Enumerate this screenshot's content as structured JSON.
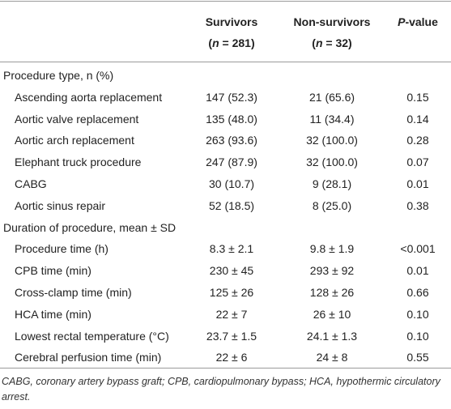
{
  "table": {
    "header": {
      "columns": [
        {
          "title": "Survivors",
          "subtitle": [
            "(",
            "n",
            " = 281)"
          ]
        },
        {
          "title": "Non-survivors",
          "subtitle": [
            "(",
            "n",
            " = 32)"
          ]
        }
      ],
      "pvalue": [
        "P",
        "-value"
      ]
    },
    "sections": [
      {
        "title": "Procedure type, n (%)",
        "rows": [
          [
            "Ascending aorta replacement",
            "147 (52.3)",
            "21 (65.6)",
            "0.15"
          ],
          [
            "Aortic valve replacement",
            "135 (48.0)",
            "11 (34.4)",
            "0.14"
          ],
          [
            "Aortic arch replacement",
            "263 (93.6)",
            "32 (100.0)",
            "0.28"
          ],
          [
            "Elephant truck procedure",
            "247 (87.9)",
            "32 (100.0)",
            "0.07"
          ],
          [
            "CABG",
            "30 (10.7)",
            "9 (28.1)",
            "0.01"
          ],
          [
            "Aortic sinus repair",
            "52 (18.5)",
            "8 (25.0)",
            "0.38"
          ]
        ]
      },
      {
        "title": "Duration of procedure, mean ± SD",
        "rows": [
          [
            "Procedure time (h)",
            "8.3 ± 2.1",
            "9.8 ± 1.9",
            "<0.001"
          ],
          [
            "CPB time (min)",
            "230 ± 45",
            "293 ± 92",
            "0.01"
          ],
          [
            "Cross-clamp time (min)",
            "125 ± 26",
            "128 ± 26",
            "0.66"
          ],
          [
            "HCA time (min)",
            "22 ± 7",
            "26 ± 10",
            "0.10"
          ],
          [
            "Lowest rectal temperature (°C)",
            "23.7 ± 1.5",
            "24.1 ± 1.3",
            "0.10"
          ],
          [
            "Cerebral perfusion time (min)",
            "22 ± 6",
            "24 ± 8",
            "0.55"
          ]
        ]
      }
    ],
    "footnote": "CABG, coronary artery bypass graft; CPB, cardiopulmonary bypass; HCA, hypothermic circulatory arrest."
  }
}
